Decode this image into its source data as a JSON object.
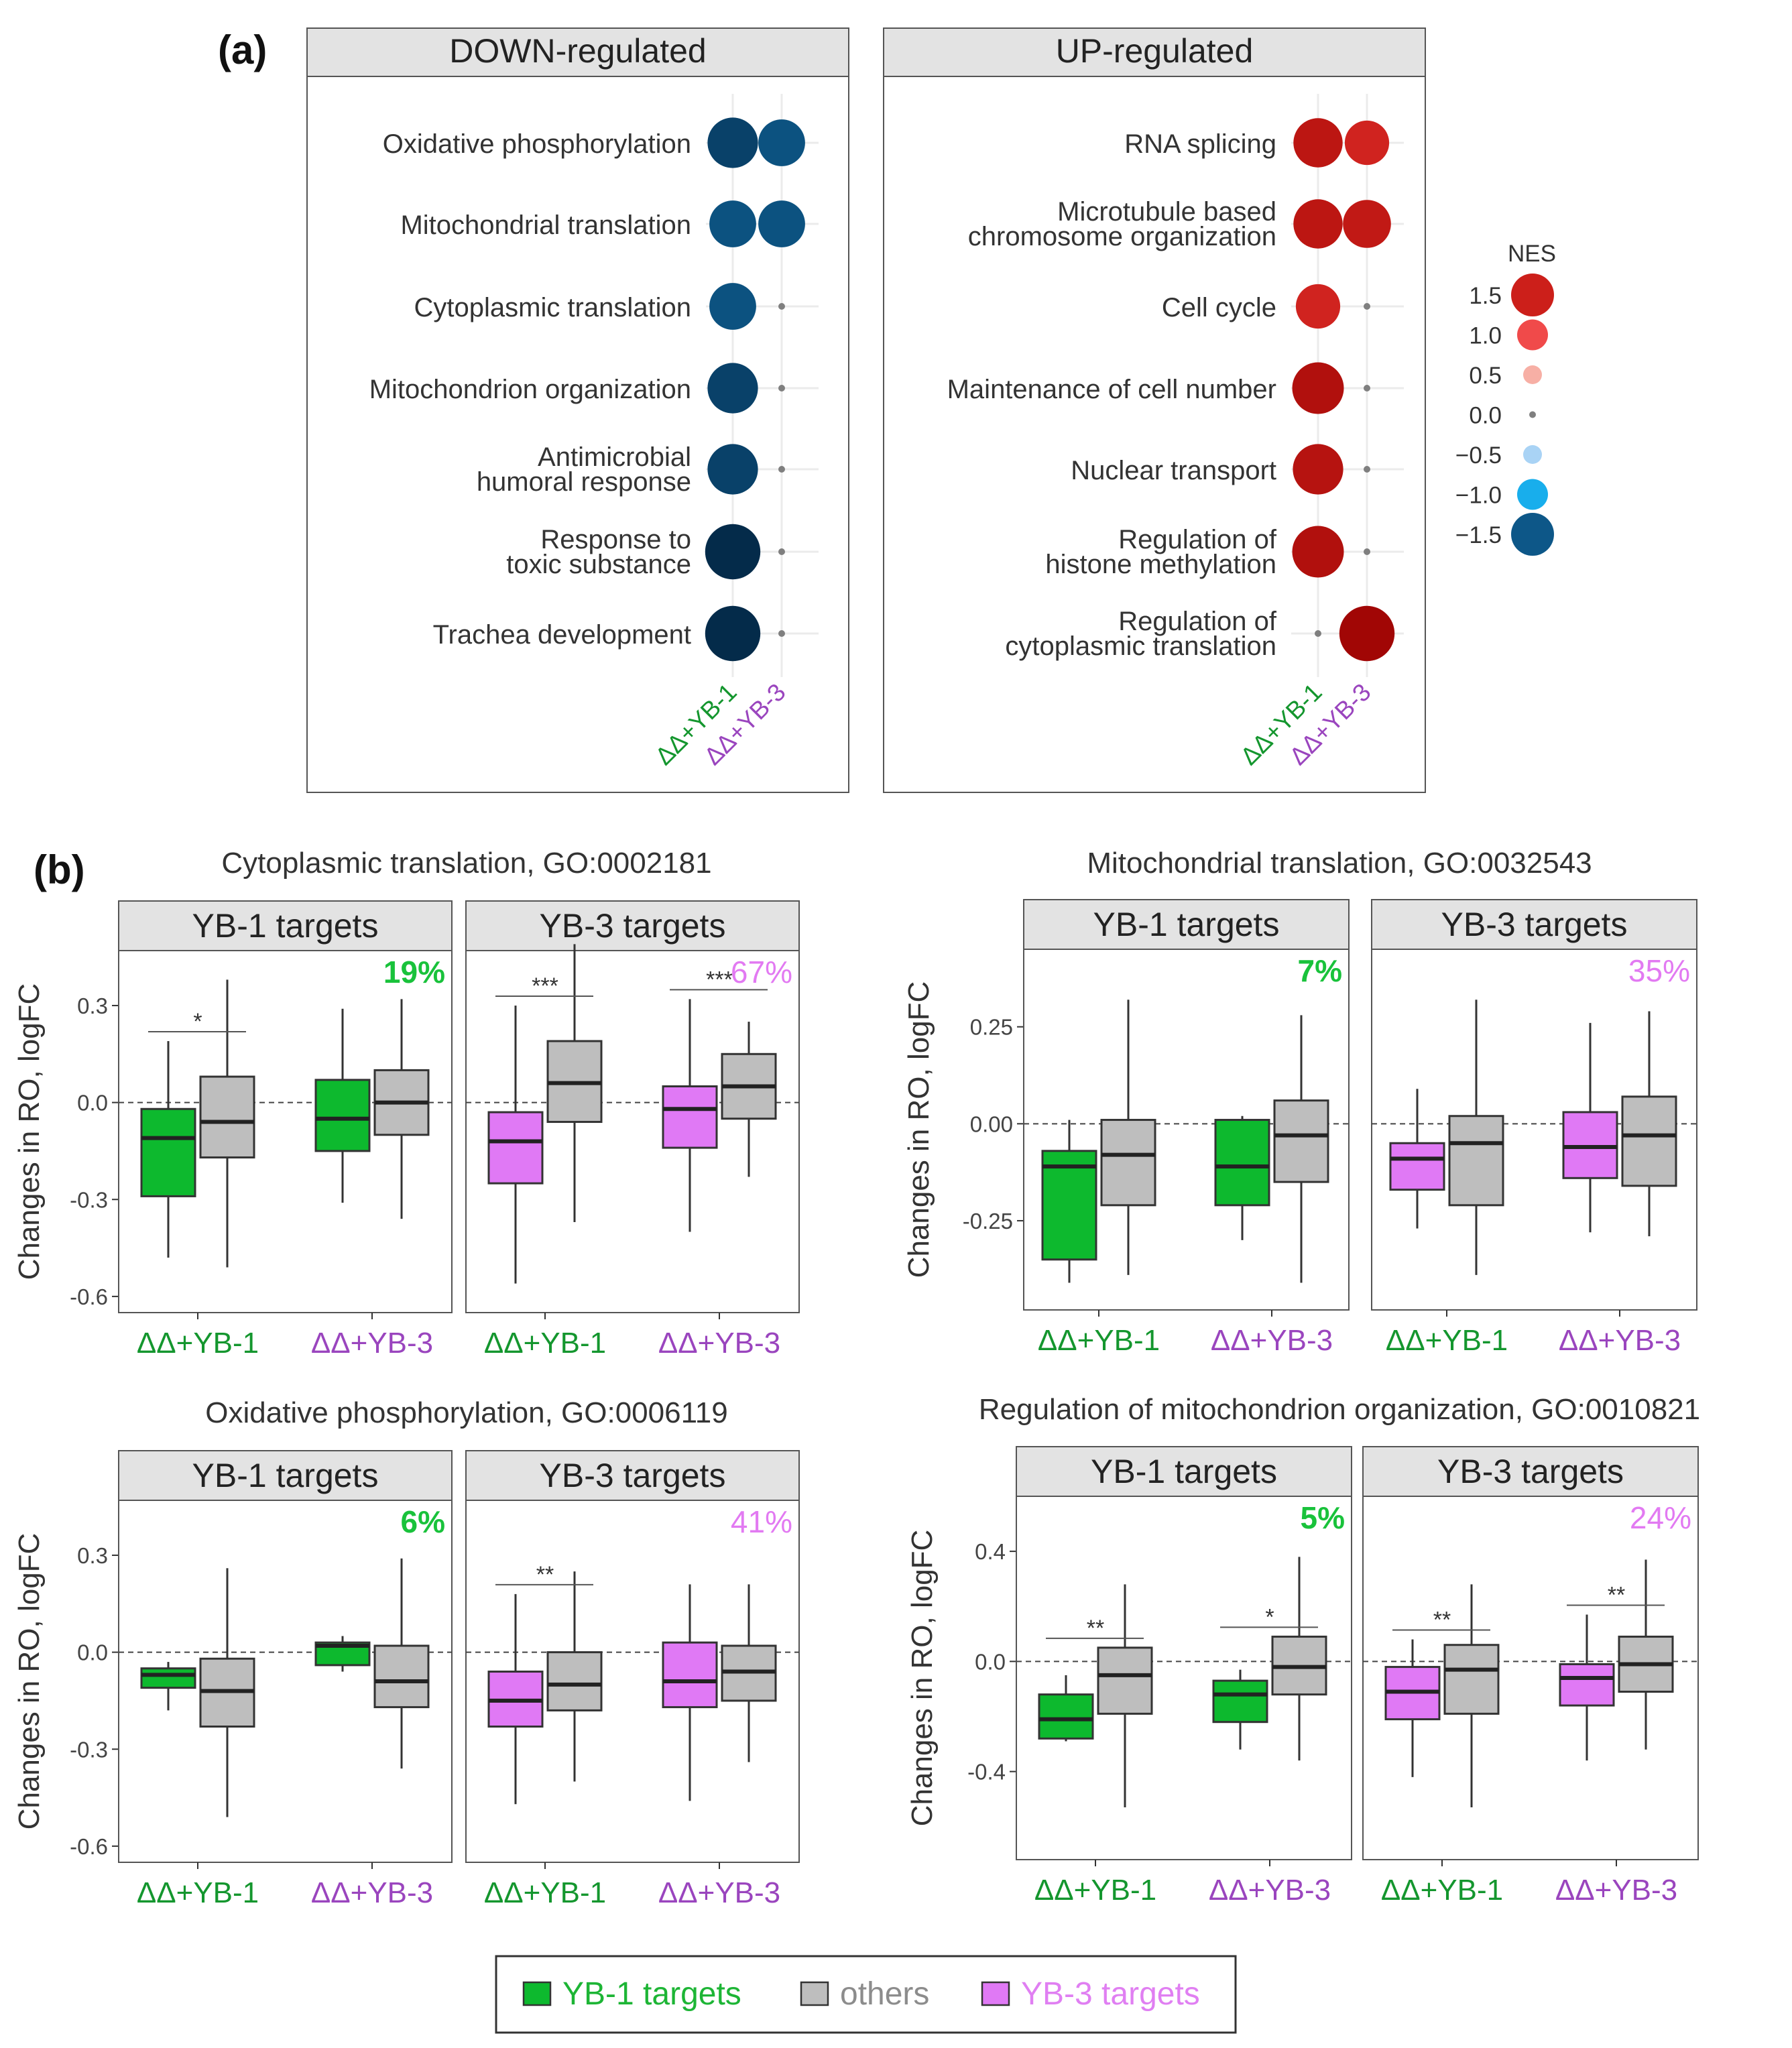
{
  "panel_a_label": "(a)",
  "panel_b_label": "(b)",
  "chart_data": [
    {
      "type": "dotplot",
      "panel": "a",
      "facets": [
        "DOWN-regulated",
        "UP-regulated"
      ],
      "conditions": [
        "ΔΔ+YB-1",
        "ΔΔ+YB-3"
      ],
      "down": [
        {
          "term": [
            "Oxidative phosphorylation"
          ],
          "nes": [
            -1.7,
            -1.55
          ]
        },
        {
          "term": [
            "Mitochondrial translation"
          ],
          "nes": [
            -1.55,
            -1.55
          ]
        },
        {
          "term": [
            "Cytoplasmic translation"
          ],
          "nes": [
            -1.55,
            0
          ]
        },
        {
          "term": [
            "Mitochondrion organization"
          ],
          "nes": [
            -1.7,
            0
          ]
        },
        {
          "term": [
            "Antimicrobial",
            "humoral response"
          ],
          "nes": [
            -1.7,
            0
          ]
        },
        {
          "term": [
            "Response to",
            "toxic substance"
          ],
          "nes": [
            -1.9,
            0
          ]
        },
        {
          "term": [
            "Trachea development"
          ],
          "nes": [
            -1.9,
            0
          ]
        }
      ],
      "up": [
        {
          "term": [
            "RNA splicing"
          ],
          "nes": [
            1.65,
            1.45
          ]
        },
        {
          "term": [
            "Microtubule based",
            "chromosome organization"
          ],
          "nes": [
            1.65,
            1.6
          ]
        },
        {
          "term": [
            "Cell cycle"
          ],
          "nes": [
            1.45,
            0
          ]
        },
        {
          "term": [
            "Maintenance of cell number"
          ],
          "nes": [
            1.75,
            0
          ]
        },
        {
          "term": [
            "Nuclear transport"
          ],
          "nes": [
            1.7,
            0
          ]
        },
        {
          "term": [
            "Regulation of",
            "histone methylation"
          ],
          "nes": [
            1.75,
            0
          ]
        },
        {
          "term": [
            "Regulation of",
            "cytoplasmic translation"
          ],
          "nes": [
            0,
            1.9
          ]
        }
      ],
      "legend": {
        "title": "NES",
        "entries": [
          {
            "label": "1.5",
            "value": 1.5,
            "color": "#CC1F1A"
          },
          {
            "label": "1.0",
            "value": 1.0,
            "color": "#F04A4A"
          },
          {
            "label": "0.5",
            "value": 0.5,
            "color": "#F7AFA5"
          },
          {
            "label": "0.0",
            "value": 0.0,
            "color": "#7F7F7F"
          },
          {
            "label": "−0.5",
            "value": -0.5,
            "color": "#A9D3F5"
          },
          {
            "label": "−1.0",
            "value": -1.0,
            "color": "#18AEEC"
          },
          {
            "label": "−1.5",
            "value": -1.5,
            "color": "#0D5788"
          }
        ]
      }
    },
    {
      "type": "boxplot",
      "panel": "b1",
      "title": "Cytoplasmic translation, GO:0002181",
      "ylabel": "Changes in RO, logFC",
      "ylim": [
        -0.65,
        0.47
      ],
      "yticks": [
        {
          "v": 0.3,
          "label": "0.3"
        },
        {
          "v": 0.0,
          "label": "0.0"
        },
        {
          "v": -0.3,
          "label": "-0.3"
        },
        {
          "v": -0.6,
          "label": "-0.6"
        }
      ],
      "facets": [
        {
          "strip": "YB-1 targets",
          "percent": "19%",
          "target": "yb1",
          "groups": [
            {
              "label": "ΔΔ+YB-1",
              "target": {
                "lo": -0.48,
                "q1": -0.29,
                "med": -0.11,
                "q3": -0.02,
                "hi": 0.19
              },
              "other": {
                "lo": -0.51,
                "q1": -0.17,
                "med": -0.06,
                "q3": 0.08,
                "hi": 0.38
              },
              "sig": "*"
            },
            {
              "label": "ΔΔ+YB-3",
              "target": {
                "lo": -0.31,
                "q1": -0.15,
                "med": -0.05,
                "q3": 0.07,
                "hi": 0.29
              },
              "other": {
                "lo": -0.36,
                "q1": -0.1,
                "med": 0.0,
                "q3": 0.1,
                "hi": 0.32
              },
              "sig": ""
            }
          ]
        },
        {
          "strip": "YB-3 targets",
          "percent": "67%",
          "target": "yb3",
          "groups": [
            {
              "label": "ΔΔ+YB-1",
              "target": {
                "lo": -0.56,
                "q1": -0.25,
                "med": -0.12,
                "q3": -0.03,
                "hi": 0.3
              },
              "other": {
                "lo": -0.37,
                "q1": -0.06,
                "med": 0.06,
                "q3": 0.19,
                "hi": 0.49
              },
              "sig": "***"
            },
            {
              "label": "ΔΔ+YB-3",
              "target": {
                "lo": -0.4,
                "q1": -0.14,
                "med": -0.02,
                "q3": 0.05,
                "hi": 0.32
              },
              "other": {
                "lo": -0.23,
                "q1": -0.05,
                "med": 0.05,
                "q3": 0.15,
                "hi": 0.25
              },
              "sig": "***"
            }
          ]
        }
      ]
    },
    {
      "type": "boxplot",
      "panel": "b2",
      "title": "Mitochondrial translation, GO:0032543",
      "ylabel": "Changes in RO, logFC",
      "ylim": [
        -0.48,
        0.45
      ],
      "yticks": [
        {
          "v": 0.25,
          "label": "0.25"
        },
        {
          "v": 0.0,
          "label": "0.00"
        },
        {
          "v": -0.25,
          "label": "-0.25"
        }
      ],
      "facets": [
        {
          "strip": "YB-1 targets",
          "percent": "7%",
          "target": "yb1",
          "groups": [
            {
              "label": "ΔΔ+YB-1",
              "target": {
                "lo": -0.41,
                "q1": -0.35,
                "med": -0.11,
                "q3": -0.07,
                "hi": 0.01
              },
              "other": {
                "lo": -0.39,
                "q1": -0.21,
                "med": -0.08,
                "q3": 0.01,
                "hi": 0.32
              },
              "sig": ""
            },
            {
              "label": "ΔΔ+YB-3",
              "target": {
                "lo": -0.3,
                "q1": -0.21,
                "med": -0.11,
                "q3": 0.01,
                "hi": 0.02
              },
              "other": {
                "lo": -0.41,
                "q1": -0.15,
                "med": -0.03,
                "q3": 0.06,
                "hi": 0.28
              },
              "sig": ""
            }
          ]
        },
        {
          "strip": "YB-3 targets",
          "percent": "35%",
          "target": "yb3",
          "groups": [
            {
              "label": "ΔΔ+YB-1",
              "target": {
                "lo": -0.27,
                "q1": -0.17,
                "med": -0.09,
                "q3": -0.05,
                "hi": 0.09
              },
              "other": {
                "lo": -0.39,
                "q1": -0.21,
                "med": -0.05,
                "q3": 0.02,
                "hi": 0.32
              },
              "sig": ""
            },
            {
              "label": "ΔΔ+YB-3",
              "target": {
                "lo": -0.28,
                "q1": -0.14,
                "med": -0.06,
                "q3": 0.03,
                "hi": 0.26
              },
              "other": {
                "lo": -0.29,
                "q1": -0.16,
                "med": -0.03,
                "q3": 0.07,
                "hi": 0.29
              },
              "sig": ""
            }
          ]
        }
      ]
    },
    {
      "type": "boxplot",
      "panel": "b3",
      "title": "Oxidative phosphorylation, GO:0006119",
      "ylabel": "Changes in RO, logFC",
      "ylim": [
        -0.65,
        0.47
      ],
      "yticks": [
        {
          "v": 0.3,
          "label": "0.3"
        },
        {
          "v": 0.0,
          "label": "0.0"
        },
        {
          "v": -0.3,
          "label": "-0.3"
        },
        {
          "v": -0.6,
          "label": "-0.6"
        }
      ],
      "facets": [
        {
          "strip": "YB-1 targets",
          "percent": "6%",
          "target": "yb1",
          "groups": [
            {
              "label": "ΔΔ+YB-1",
              "target": {
                "lo": -0.18,
                "q1": -0.11,
                "med": -0.07,
                "q3": -0.05,
                "hi": -0.03
              },
              "other": {
                "lo": -0.51,
                "q1": -0.23,
                "med": -0.12,
                "q3": -0.02,
                "hi": 0.26
              },
              "sig": ""
            },
            {
              "label": "ΔΔ+YB-3",
              "target": {
                "lo": -0.06,
                "q1": -0.04,
                "med": 0.02,
                "q3": 0.03,
                "hi": 0.05
              },
              "other": {
                "lo": -0.36,
                "q1": -0.17,
                "med": -0.09,
                "q3": 0.02,
                "hi": 0.29
              },
              "sig": ""
            }
          ]
        },
        {
          "strip": "YB-3 targets",
          "percent": "41%",
          "target": "yb3",
          "groups": [
            {
              "label": "ΔΔ+YB-1",
              "target": {
                "lo": -0.47,
                "q1": -0.23,
                "med": -0.15,
                "q3": -0.06,
                "hi": 0.18
              },
              "other": {
                "lo": -0.4,
                "q1": -0.18,
                "med": -0.1,
                "q3": 0.0,
                "hi": 0.25
              },
              "sig": "**"
            },
            {
              "label": "ΔΔ+YB-3",
              "target": {
                "lo": -0.46,
                "q1": -0.17,
                "med": -0.09,
                "q3": 0.03,
                "hi": 0.21
              },
              "other": {
                "lo": -0.34,
                "q1": -0.15,
                "med": -0.06,
                "q3": 0.02,
                "hi": 0.21
              },
              "sig": ""
            }
          ]
        }
      ]
    },
    {
      "type": "boxplot",
      "panel": "b4",
      "title": "Regulation of mitochondrion organization, GO:0010821",
      "ylabel": "Changes in RO, logFC",
      "ylim": [
        -0.72,
        0.6
      ],
      "yticks": [
        {
          "v": 0.4,
          "label": "0.4"
        },
        {
          "v": 0.0,
          "label": "0.0"
        },
        {
          "v": -0.4,
          "label": "-0.4"
        }
      ],
      "facets": [
        {
          "strip": "YB-1 targets",
          "percent": "5%",
          "target": "yb1",
          "groups": [
            {
              "label": "ΔΔ+YB-1",
              "target": {
                "lo": -0.29,
                "q1": -0.28,
                "med": -0.21,
                "q3": -0.12,
                "hi": -0.05
              },
              "other": {
                "lo": -0.53,
                "q1": -0.19,
                "med": -0.05,
                "q3": 0.05,
                "hi": 0.28
              },
              "sig": "**"
            },
            {
              "label": "ΔΔ+YB-3",
              "target": {
                "lo": -0.32,
                "q1": -0.22,
                "med": -0.12,
                "q3": -0.07,
                "hi": -0.03
              },
              "other": {
                "lo": -0.36,
                "q1": -0.12,
                "med": -0.02,
                "q3": 0.09,
                "hi": 0.38
              },
              "sig": "*"
            }
          ]
        },
        {
          "strip": "YB-3 targets",
          "percent": "24%",
          "target": "yb3",
          "groups": [
            {
              "label": "ΔΔ+YB-1",
              "target": {
                "lo": -0.42,
                "q1": -0.21,
                "med": -0.11,
                "q3": -0.02,
                "hi": 0.08
              },
              "other": {
                "lo": -0.53,
                "q1": -0.19,
                "med": -0.03,
                "q3": 0.06,
                "hi": 0.28
              },
              "sig": "**"
            },
            {
              "label": "ΔΔ+YB-3",
              "target": {
                "lo": -0.36,
                "q1": -0.16,
                "med": -0.06,
                "q3": -0.01,
                "hi": 0.17
              },
              "other": {
                "lo": -0.32,
                "q1": -0.11,
                "med": -0.01,
                "q3": 0.09,
                "hi": 0.37
              },
              "sig": "**"
            }
          ]
        }
      ]
    }
  ],
  "legend_b": [
    {
      "label": "YB-1 targets",
      "key": "yb1"
    },
    {
      "label": "others",
      "key": "other"
    },
    {
      "label": "YB-3 targets",
      "key": "yb3"
    }
  ],
  "colors": {
    "yb1_fill": "#0DB92E",
    "yb3_fill": "#E079F5",
    "other_fill": "#BEBEBE",
    "yb1_text": "#14962E",
    "yb3_text": "#9A45BE",
    "yb1_percent": "#19C23B",
    "yb3_percent": "#E27AF2",
    "legend_yb1_text": "#1DB535",
    "legend_other_text": "#8C8C8C",
    "legend_yb3_text": "#E07FF2"
  }
}
